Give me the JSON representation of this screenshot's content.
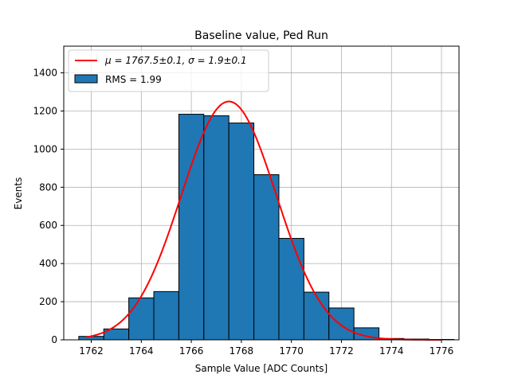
{
  "chart_data": {
    "type": "bar",
    "title": "Baseline value, Ped Run",
    "xlabel": "Sample Value [ADC Counts]",
    "ylabel": "Events",
    "xlim": [
      1760.9,
      1776.7
    ],
    "ylim": [
      0,
      1540
    ],
    "xticks": [
      1762,
      1764,
      1766,
      1768,
      1770,
      1772,
      1774,
      1776
    ],
    "yticks": [
      0,
      200,
      400,
      600,
      800,
      1000,
      1200,
      1400
    ],
    "grid": true,
    "legend_position": "top-left",
    "bin_width": 1,
    "bins": [
      {
        "left": 1761.5,
        "value": 18
      },
      {
        "left": 1762.5,
        "value": 57
      },
      {
        "left": 1763.5,
        "value": 220
      },
      {
        "left": 1764.5,
        "value": 253
      },
      {
        "left": 1765.5,
        "value": 1183
      },
      {
        "left": 1766.5,
        "value": 1175
      },
      {
        "left": 1767.5,
        "value": 1137
      },
      {
        "left": 1768.5,
        "value": 866
      },
      {
        "left": 1769.5,
        "value": 532
      },
      {
        "left": 1770.5,
        "value": 250
      },
      {
        "left": 1771.5,
        "value": 167
      },
      {
        "left": 1772.5,
        "value": 63
      },
      {
        "left": 1773.5,
        "value": 7
      },
      {
        "left": 1774.5,
        "value": 4
      },
      {
        "left": 1775.5,
        "value": 2
      }
    ],
    "fit": {
      "type": "gaussian",
      "mu": 1767.5,
      "sigma": 1.9,
      "amplitude": 1250,
      "x_range": [
        1761.8,
        1776
      ],
      "color": "#ff0000"
    },
    "bar_color": "#1f77b4",
    "series": [
      {
        "name": "$\\mu = 1767.5±0.1$, $\\sigma = 1.9±0.1$",
        "label_display": "μ = 1767.5±0.1, σ = 1.9±0.1",
        "kind": "line",
        "color": "#ff0000"
      },
      {
        "name": "RMS = 1.99",
        "label_display": "RMS = 1.99",
        "kind": "bar",
        "color": "#1f77b4"
      }
    ]
  }
}
